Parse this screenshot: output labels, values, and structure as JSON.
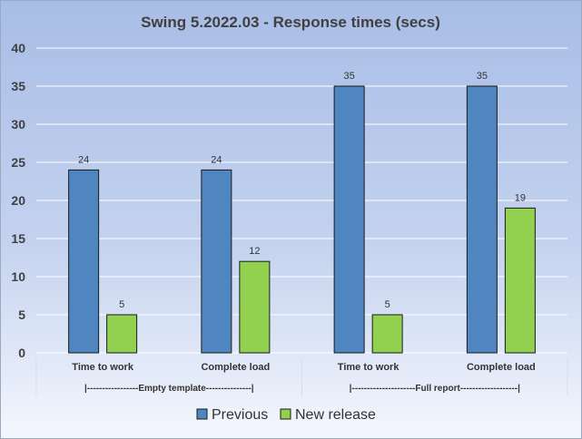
{
  "chart_data": {
    "type": "bar",
    "title": "Swing 5.2022.03 - Response times (secs)",
    "categories": [
      "Time to work",
      "Complete load",
      "Time to work",
      "Complete load"
    ],
    "groups": [
      {
        "label": "|-----------------Empty template---------------|",
        "categories": [
          0,
          1
        ]
      },
      {
        "label": "|---------------------Full report-------------------|",
        "categories": [
          2,
          3
        ]
      }
    ],
    "series": [
      {
        "name": "Previous",
        "values": [
          24,
          24,
          35,
          35
        ],
        "color": "#4f86c0"
      },
      {
        "name": "New release",
        "values": [
          5,
          12,
          5,
          19
        ],
        "color": "#92d050"
      }
    ],
    "yticks": [
      0,
      5,
      10,
      15,
      20,
      25,
      30,
      35,
      40
    ],
    "ylim": [
      0,
      40
    ],
    "grid": true,
    "legend": "bottom"
  }
}
